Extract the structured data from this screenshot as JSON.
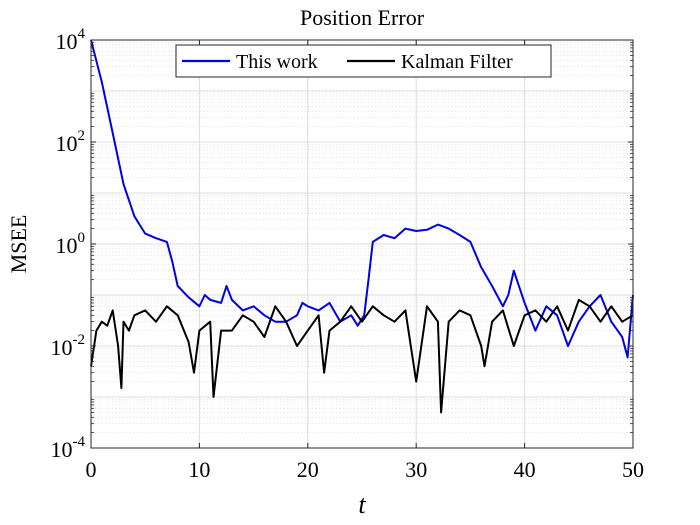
{
  "chart_data": {
    "type": "line",
    "title": "Position Error",
    "xlabel": "t",
    "ylabel": "MSEE",
    "xlim": [
      0,
      50
    ],
    "ylim": [
      0.0001,
      10000
    ],
    "yscale": "log",
    "grid": true,
    "minor_grid": true,
    "legend_position": "top-center",
    "x_ticks": [
      "0",
      "10",
      "20",
      "30",
      "40",
      "50"
    ],
    "y_ticks": [
      {
        "value": 10000,
        "base": "10",
        "exp": "4"
      },
      {
        "value": 100,
        "base": "10",
        "exp": "2"
      },
      {
        "value": 1,
        "base": "10",
        "exp": "0"
      },
      {
        "value": 0.01,
        "base": "10",
        "exp": "-2"
      },
      {
        "value": 0.0001,
        "base": "10",
        "exp": "-4"
      }
    ],
    "series": [
      {
        "name": "This work",
        "color": "#0000e6",
        "x": [
          0,
          1,
          2,
          3,
          4,
          5,
          6,
          7,
          7.5,
          8,
          9,
          10,
          10.5,
          11,
          12,
          12.5,
          13,
          14,
          15,
          16,
          17,
          18,
          19,
          19.5,
          20,
          21,
          22,
          23,
          24,
          24.6,
          25.2,
          25.6,
          26,
          27,
          28,
          29,
          30,
          31,
          32,
          33,
          34,
          35,
          36,
          37,
          38,
          38.5,
          39,
          40,
          41,
          42,
          43,
          44,
          45,
          46,
          47,
          48,
          49,
          49.5,
          50
        ],
        "y": [
          10000,
          1500,
          150,
          15,
          3.5,
          1.6,
          1.3,
          1.1,
          0.45,
          0.15,
          0.09,
          0.06,
          0.1,
          0.08,
          0.07,
          0.15,
          0.08,
          0.05,
          0.06,
          0.04,
          0.03,
          0.03,
          0.04,
          0.07,
          0.06,
          0.05,
          0.07,
          0.03,
          0.04,
          0.025,
          0.04,
          0.2,
          1.1,
          1.5,
          1.3,
          2.0,
          1.8,
          1.9,
          2.4,
          2.0,
          1.5,
          1.1,
          0.35,
          0.15,
          0.06,
          0.1,
          0.3,
          0.07,
          0.02,
          0.06,
          0.04,
          0.01,
          0.03,
          0.06,
          0.1,
          0.03,
          0.015,
          0.006,
          0.1
        ]
      },
      {
        "name": "Kalman Filter",
        "color": "#000000",
        "x": [
          0,
          0.5,
          1,
          1.5,
          2,
          2.5,
          2.8,
          3,
          3.5,
          4,
          5,
          6,
          7,
          8,
          9,
          9.5,
          10,
          11,
          11.3,
          12,
          13,
          14,
          15,
          16,
          17,
          18,
          19,
          20,
          21,
          21.5,
          22,
          23,
          24,
          25,
          26,
          27,
          28,
          29,
          29.5,
          30,
          31,
          32,
          32.3,
          33,
          34,
          35,
          36,
          36.3,
          37,
          38,
          39,
          40,
          41,
          42,
          43,
          44,
          45,
          46,
          47,
          48,
          49,
          50
        ],
        "y": [
          0.004,
          0.02,
          0.03,
          0.025,
          0.05,
          0.01,
          0.0015,
          0.03,
          0.02,
          0.04,
          0.05,
          0.03,
          0.06,
          0.04,
          0.012,
          0.003,
          0.02,
          0.03,
          0.001,
          0.02,
          0.02,
          0.04,
          0.03,
          0.015,
          0.06,
          0.03,
          0.01,
          0.02,
          0.04,
          0.003,
          0.02,
          0.03,
          0.06,
          0.03,
          0.06,
          0.04,
          0.03,
          0.05,
          0.01,
          0.002,
          0.06,
          0.03,
          0.0005,
          0.03,
          0.05,
          0.04,
          0.01,
          0.004,
          0.03,
          0.05,
          0.01,
          0.04,
          0.05,
          0.03,
          0.06,
          0.02,
          0.08,
          0.06,
          0.03,
          0.06,
          0.03,
          0.04
        ]
      }
    ]
  }
}
